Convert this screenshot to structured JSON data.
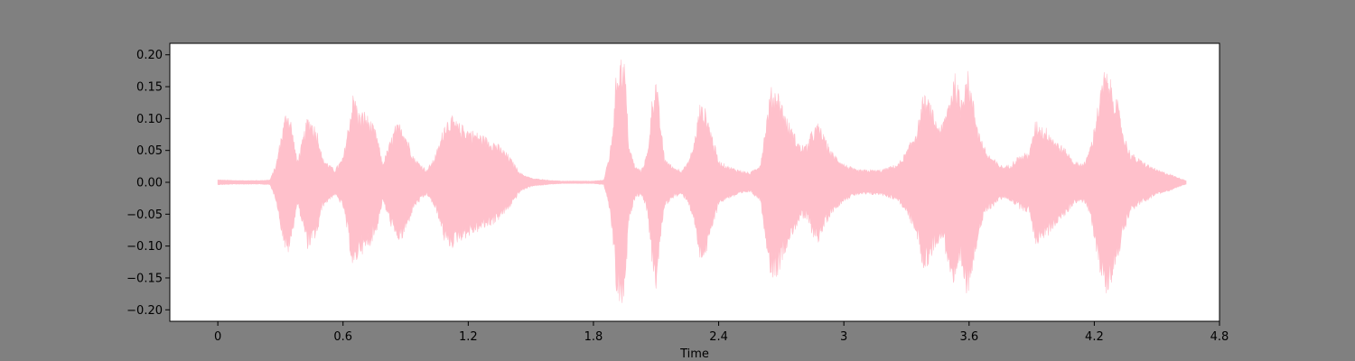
{
  "chart_data": {
    "type": "area",
    "title": "",
    "xlabel": "Time",
    "ylabel": "",
    "xlim": [
      -0.23,
      4.8
    ],
    "ylim": [
      -0.218,
      0.218
    ],
    "x_ticks": [
      0,
      0.6,
      1.2,
      1.8,
      2.4,
      3.0,
      3.6,
      4.2,
      4.8
    ],
    "x_tick_labels": [
      "0",
      "0.6",
      "1.2",
      "1.8",
      "2.4",
      "3",
      "3.6",
      "4.2",
      "4.8"
    ],
    "y_ticks": [
      -0.2,
      -0.15,
      -0.1,
      -0.05,
      0.0,
      0.05,
      0.1,
      0.15,
      0.2
    ],
    "y_tick_labels": [
      "−0.20",
      "−0.15",
      "−0.10",
      "−0.05",
      "0.00",
      "0.05",
      "0.10",
      "0.15",
      "0.20"
    ],
    "grid": false,
    "series": [
      {
        "kind": "waveform-envelope",
        "color": "#ffc0cb",
        "x": [
          0.0,
          0.1,
          0.2,
          0.25,
          0.28,
          0.3,
          0.33,
          0.35,
          0.38,
          0.4,
          0.43,
          0.45,
          0.48,
          0.5,
          0.53,
          0.56,
          0.6,
          0.62,
          0.65,
          0.68,
          0.7,
          0.73,
          0.76,
          0.79,
          0.82,
          0.85,
          0.88,
          0.91,
          0.94,
          0.97,
          1.0,
          1.03,
          1.06,
          1.09,
          1.12,
          1.15,
          1.18,
          1.21,
          1.24,
          1.27,
          1.3,
          1.33,
          1.36,
          1.39,
          1.42,
          1.45,
          1.48,
          1.51,
          1.55,
          1.6,
          1.65,
          1.7,
          1.75,
          1.8,
          1.85,
          1.88,
          1.9,
          1.91,
          1.93,
          1.95,
          1.97,
          2.0,
          2.03,
          2.06,
          2.08,
          2.1,
          2.12,
          2.14,
          2.18,
          2.22,
          2.25,
          2.28,
          2.31,
          2.34,
          2.37,
          2.4,
          2.45,
          2.5,
          2.55,
          2.6,
          2.62,
          2.65,
          2.68,
          2.7,
          2.73,
          2.76,
          2.79,
          2.82,
          2.85,
          2.88,
          2.91,
          2.94,
          2.97,
          3.0,
          3.03,
          3.06,
          3.1,
          3.14,
          3.18,
          3.22,
          3.26,
          3.3,
          3.34,
          3.36,
          3.38,
          3.41,
          3.44,
          3.47,
          3.5,
          3.53,
          3.56,
          3.59,
          3.62,
          3.65,
          3.68,
          3.71,
          3.74,
          3.77,
          3.8,
          3.83,
          3.86,
          3.89,
          3.92,
          3.95,
          3.98,
          4.01,
          4.04,
          4.07,
          4.1,
          4.13,
          4.16,
          4.19,
          4.22,
          4.25,
          4.28,
          4.31,
          4.34,
          4.37,
          4.4,
          4.45,
          4.5,
          4.55,
          4.6,
          4.64
        ],
        "upper": [
          0.004,
          0.003,
          0.003,
          0.004,
          0.03,
          0.07,
          0.12,
          0.1,
          0.035,
          0.06,
          0.105,
          0.1,
          0.08,
          0.04,
          0.03,
          0.02,
          0.04,
          0.08,
          0.145,
          0.11,
          0.115,
          0.1,
          0.08,
          0.03,
          0.06,
          0.09,
          0.095,
          0.07,
          0.04,
          0.03,
          0.02,
          0.035,
          0.06,
          0.1,
          0.105,
          0.095,
          0.09,
          0.085,
          0.08,
          0.075,
          0.07,
          0.065,
          0.055,
          0.045,
          0.03,
          0.015,
          0.01,
          0.006,
          0.005,
          0.003,
          0.002,
          0.002,
          0.002,
          0.002,
          0.004,
          0.05,
          0.12,
          0.18,
          0.2,
          0.19,
          0.06,
          0.025,
          0.02,
          0.05,
          0.13,
          0.17,
          0.1,
          0.04,
          0.025,
          0.02,
          0.03,
          0.06,
          0.125,
          0.115,
          0.075,
          0.035,
          0.025,
          0.02,
          0.015,
          0.03,
          0.08,
          0.15,
          0.15,
          0.13,
          0.1,
          0.08,
          0.06,
          0.06,
          0.085,
          0.095,
          0.07,
          0.05,
          0.04,
          0.03,
          0.025,
          0.02,
          0.02,
          0.02,
          0.02,
          0.025,
          0.03,
          0.05,
          0.08,
          0.1,
          0.14,
          0.13,
          0.1,
          0.09,
          0.13,
          0.175,
          0.135,
          0.185,
          0.13,
          0.08,
          0.05,
          0.04,
          0.03,
          0.025,
          0.03,
          0.04,
          0.045,
          0.05,
          0.1,
          0.09,
          0.085,
          0.07,
          0.06,
          0.05,
          0.035,
          0.03,
          0.035,
          0.07,
          0.13,
          0.18,
          0.16,
          0.13,
          0.08,
          0.05,
          0.04,
          0.03,
          0.02,
          0.015,
          0.008,
          0.003
        ],
        "lower": [
          -0.004,
          -0.003,
          -0.003,
          -0.004,
          -0.03,
          -0.07,
          -0.12,
          -0.1,
          -0.035,
          -0.06,
          -0.105,
          -0.1,
          -0.08,
          -0.04,
          -0.03,
          -0.02,
          -0.04,
          -0.08,
          -0.145,
          -0.11,
          -0.115,
          -0.1,
          -0.08,
          -0.03,
          -0.06,
          -0.09,
          -0.095,
          -0.07,
          -0.04,
          -0.03,
          -0.02,
          -0.035,
          -0.06,
          -0.1,
          -0.105,
          -0.095,
          -0.09,
          -0.085,
          -0.08,
          -0.075,
          -0.07,
          -0.065,
          -0.055,
          -0.045,
          -0.03,
          -0.015,
          -0.01,
          -0.006,
          -0.005,
          -0.003,
          -0.002,
          -0.002,
          -0.002,
          -0.002,
          -0.004,
          -0.05,
          -0.12,
          -0.18,
          -0.2,
          -0.19,
          -0.06,
          -0.025,
          -0.02,
          -0.05,
          -0.13,
          -0.17,
          -0.1,
          -0.04,
          -0.025,
          -0.02,
          -0.03,
          -0.06,
          -0.125,
          -0.115,
          -0.075,
          -0.035,
          -0.025,
          -0.02,
          -0.015,
          -0.03,
          -0.08,
          -0.15,
          -0.15,
          -0.13,
          -0.1,
          -0.08,
          -0.06,
          -0.06,
          -0.085,
          -0.095,
          -0.07,
          -0.05,
          -0.04,
          -0.03,
          -0.025,
          -0.02,
          -0.02,
          -0.02,
          -0.02,
          -0.025,
          -0.03,
          -0.05,
          -0.08,
          -0.1,
          -0.14,
          -0.13,
          -0.1,
          -0.09,
          -0.13,
          -0.175,
          -0.135,
          -0.185,
          -0.13,
          -0.08,
          -0.05,
          -0.04,
          -0.03,
          -0.025,
          -0.03,
          -0.04,
          -0.045,
          -0.05,
          -0.1,
          -0.09,
          -0.085,
          -0.07,
          -0.06,
          -0.05,
          -0.035,
          -0.03,
          -0.035,
          -0.07,
          -0.13,
          -0.18,
          -0.16,
          -0.13,
          -0.08,
          -0.05,
          -0.04,
          -0.03,
          -0.02,
          -0.015,
          -0.008,
          -0.003
        ]
      }
    ]
  }
}
